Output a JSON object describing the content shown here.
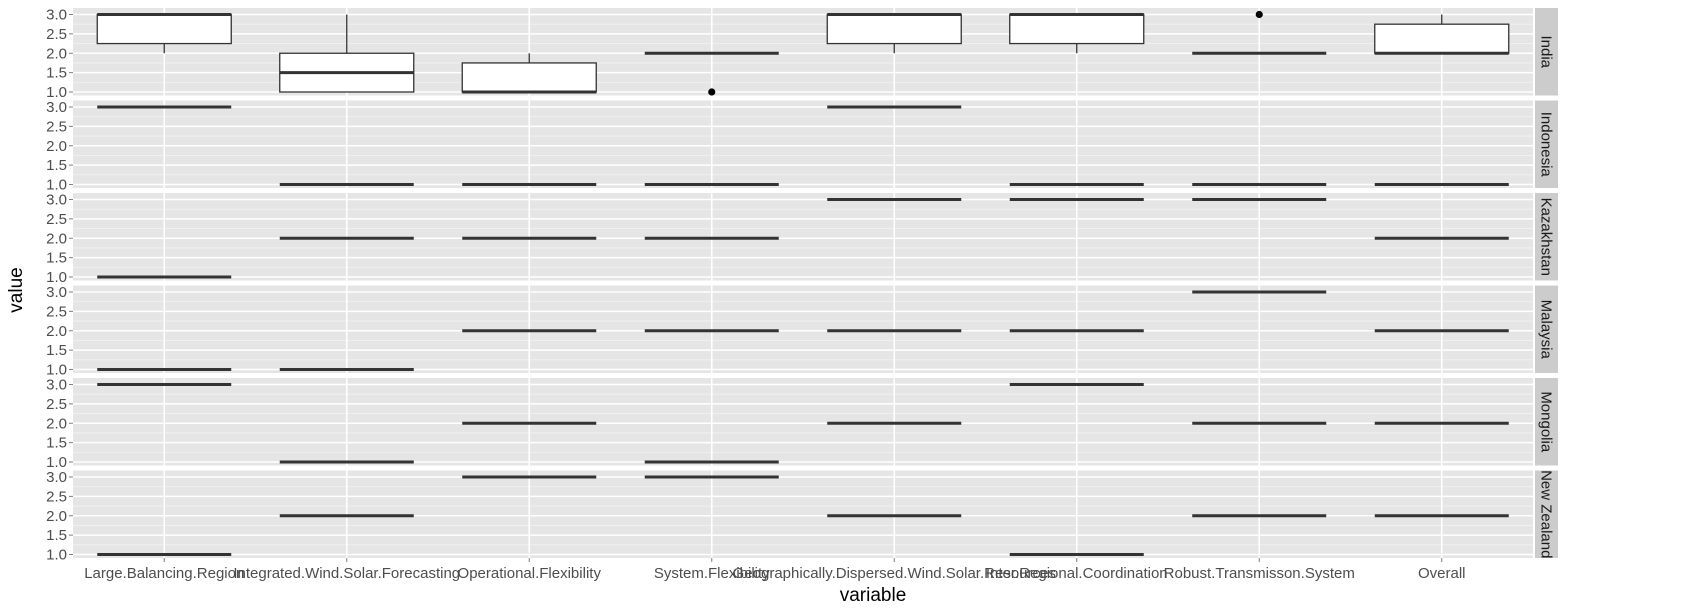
{
  "chart_data": {
    "type": "boxplot",
    "xlabel": "variable",
    "ylabel": "value",
    "ylim": [
      1.0,
      3.0
    ],
    "y_ticks": [
      "1.0",
      "1.5",
      "2.0",
      "2.5",
      "3.0"
    ],
    "grid": true,
    "facet": "rows",
    "categories": [
      "Large.Balancing.Region",
      "Integrated.Wind.Solar.Forecasting",
      "Operational.Flexibility",
      "System.Flexibility",
      "Geographically.Dispersed.Wind.Solar.Resources",
      "Inter.Regional.Coordination",
      "Robust.Transmisson.System",
      "Overall"
    ],
    "panels": [
      {
        "label": "India",
        "boxes": [
          {
            "whisker_low": 2,
            "q1": 2.25,
            "median": 3,
            "q3": 3,
            "whisker_high": 3
          },
          {
            "whisker_low": 1,
            "q1": 1,
            "median": 1.5,
            "q3": 2,
            "whisker_high": 3
          },
          {
            "whisker_low": 1,
            "q1": 1,
            "median": 1,
            "q3": 1.75,
            "whisker_high": 2
          },
          {
            "whisker_low": 2,
            "q1": 2,
            "median": 2,
            "q3": 2,
            "whisker_high": 2,
            "outliers": [
              1
            ]
          },
          {
            "whisker_low": 2,
            "q1": 2.25,
            "median": 3,
            "q3": 3,
            "whisker_high": 3
          },
          {
            "whisker_low": 2,
            "q1": 2.25,
            "median": 3,
            "q3": 3,
            "whisker_high": 3
          },
          {
            "whisker_low": 2,
            "q1": 2,
            "median": 2,
            "q3": 2,
            "whisker_high": 2,
            "outliers": [
              3
            ]
          },
          {
            "whisker_low": 2,
            "q1": 2,
            "median": 2,
            "q3": 2.75,
            "whisker_high": 3
          }
        ]
      },
      {
        "label": "Indonesia",
        "values": [
          3,
          1,
          1,
          1,
          3,
          1,
          1,
          1
        ]
      },
      {
        "label": "Kazakhstan",
        "values": [
          1,
          2,
          2,
          2,
          3,
          3,
          3,
          2
        ]
      },
      {
        "label": "Malaysia",
        "values": [
          1,
          1,
          2,
          2,
          2,
          2,
          3,
          2
        ]
      },
      {
        "label": "Mongolia",
        "values": [
          3,
          1,
          2,
          1,
          2,
          3,
          2,
          2
        ]
      },
      {
        "label": "New Zealand",
        "values": [
          1,
          2,
          3,
          3,
          2,
          1,
          2,
          2
        ]
      }
    ]
  }
}
